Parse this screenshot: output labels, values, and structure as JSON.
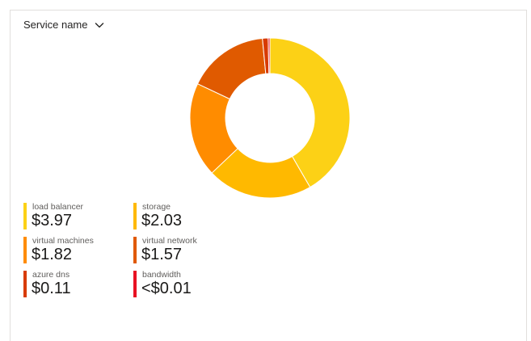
{
  "header": {
    "group_by_label": "Service name",
    "group_by_icon": "chevron-down-icon"
  },
  "chart_data": {
    "type": "pie",
    "donut": true,
    "title": "",
    "categories": [
      "load balancer",
      "storage",
      "virtual machines",
      "virtual network",
      "azure dns",
      "bandwidth"
    ],
    "values": [
      3.97,
      2.03,
      1.82,
      1.57,
      0.11,
      0.005
    ],
    "colors": [
      "#fcd116",
      "#ffb900",
      "#ff8c00",
      "#e05a00",
      "#d83b01",
      "#e81123"
    ],
    "legend_position": "bottom-left"
  },
  "legend": [
    {
      "name": "load balancer",
      "value": "$3.97",
      "color": "#fcd116"
    },
    {
      "name": "storage",
      "value": "$2.03",
      "color": "#ffb900"
    },
    {
      "name": "virtual machines",
      "value": "$1.82",
      "color": "#ff8c00"
    },
    {
      "name": "virtual network",
      "value": "$1.57",
      "color": "#e05a00"
    },
    {
      "name": "azure dns",
      "value": "$0.11",
      "color": "#d83b01"
    },
    {
      "name": "bandwidth",
      "value": "<$0.01",
      "color": "#e81123"
    }
  ]
}
